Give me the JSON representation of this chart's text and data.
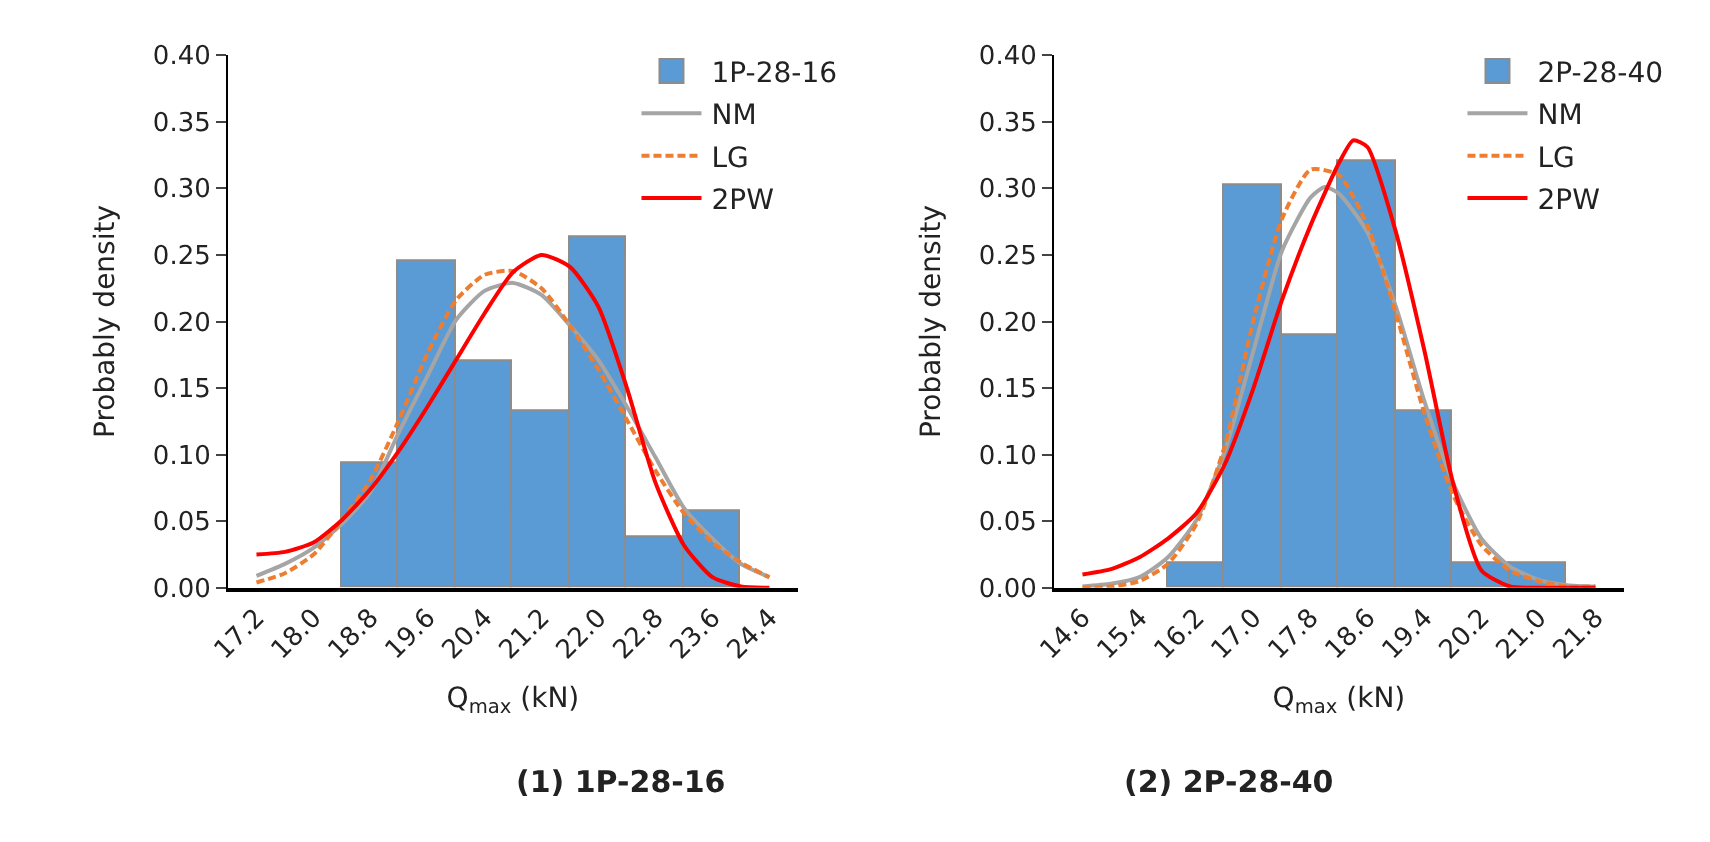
{
  "chart_data": [
    {
      "type": "histogram",
      "title": "(1) 1P-28-16",
      "xlabel": "Q$_{max}$ (kN)",
      "ylabel": "Probably density",
      "xlim": [
        16.8,
        24.8
      ],
      "ylim": [
        0,
        0.4
      ],
      "xticks": [
        {
          "value": 17.2,
          "label": "17.2"
        },
        {
          "value": 18.0,
          "label": "18.0"
        },
        {
          "value": 18.8,
          "label": "18.8"
        },
        {
          "value": 19.6,
          "label": "19.6"
        },
        {
          "value": 20.4,
          "label": "20.4"
        },
        {
          "value": 21.2,
          "label": "21.2"
        },
        {
          "value": 22.0,
          "label": "22.0"
        },
        {
          "value": 22.8,
          "label": "22.8"
        },
        {
          "value": 23.6,
          "label": "23.6"
        },
        {
          "value": 24.4,
          "label": "24.4"
        }
      ],
      "yticks": [
        {
          "value": 0,
          "label": "0.00"
        },
        0.05,
        {
          "value": 0.1,
          "label": "0.10"
        },
        0.15,
        {
          "value": 0.2,
          "label": "0.20"
        },
        0.25,
        {
          "value": 0.3,
          "label": "0.30"
        },
        0.35,
        {
          "value": 0.4,
          "label": "0.40"
        }
      ],
      "grid": false,
      "legend": "top right",
      "series": [
        {
          "name": "1P-28-16",
          "color": "#5b9bd5",
          "bins": [
            18.4,
            19.2,
            20.0,
            20.8,
            21.6,
            22.4,
            23.2,
            24.0
          ],
          "values": [
            0.094,
            0.245,
            0.17,
            0.132,
            0.264,
            0.038,
            0.057
          ]
        },
        {
          "name": "NM",
          "type": "line",
          "color": "#a5a5a5",
          "line_style": "solid",
          "x": [
            17.2,
            17.6,
            18.0,
            18.4,
            18.8,
            19.2,
            19.6,
            20.0,
            20.4,
            20.8,
            21.2,
            21.6,
            22.0,
            22.4,
            22.8,
            23.2,
            23.6,
            24.0,
            24.4
          ],
          "values": [
            0.009,
            0.018,
            0.03,
            0.048,
            0.072,
            0.117,
            0.159,
            0.201,
            0.223,
            0.229,
            0.22,
            0.197,
            0.171,
            0.136,
            0.098,
            0.06,
            0.037,
            0.018,
            0.008
          ]
        },
        {
          "name": "LG",
          "type": "line",
          "color": "#ed7d31",
          "line_style": "dashed",
          "x": [
            17.2,
            17.6,
            18.0,
            18.4,
            18.8,
            19.2,
            19.6,
            20.0,
            20.4,
            20.8,
            21.2,
            21.6,
            22.0,
            22.4,
            22.8,
            23.2,
            23.6,
            24.0,
            24.4
          ],
          "values": [
            0.004,
            0.011,
            0.025,
            0.051,
            0.081,
            0.126,
            0.176,
            0.216,
            0.235,
            0.238,
            0.225,
            0.197,
            0.164,
            0.126,
            0.088,
            0.056,
            0.034,
            0.019,
            0.008
          ]
        },
        {
          "name": "2PW",
          "type": "line",
          "color": "#ff0000",
          "line_style": "solid",
          "x": [
            17.2,
            17.6,
            18.0,
            18.4,
            18.8,
            19.2,
            19.6,
            20.0,
            20.4,
            20.8,
            21.2,
            21.6,
            22.0,
            22.4,
            22.8,
            23.2,
            23.6,
            24.0,
            24.4
          ],
          "values": [
            0.025,
            0.027,
            0.034,
            0.051,
            0.074,
            0.103,
            0.136,
            0.171,
            0.206,
            0.237,
            0.25,
            0.241,
            0.211,
            0.15,
            0.079,
            0.032,
            0.008,
            0.001,
            0
          ]
        }
      ]
    },
    {
      "type": "histogram",
      "title": "(2) 2P-28-40",
      "xlabel": "Q$_{max}$ (kN)",
      "ylabel": "Probably density",
      "xlim": [
        14.2,
        22.2
      ],
      "ylim": [
        0,
        0.4
      ],
      "xticks": [
        {
          "value": 14.6,
          "label": "14.6"
        },
        {
          "value": 15.4,
          "label": "15.4"
        },
        {
          "value": 16.2,
          "label": "16.2"
        },
        {
          "value": 17.0,
          "label": "17.0"
        },
        {
          "value": 17.8,
          "label": "17.8"
        },
        {
          "value": 18.6,
          "label": "18.6"
        },
        {
          "value": 19.4,
          "label": "19.4"
        },
        {
          "value": 20.2,
          "label": "20.2"
        },
        {
          "value": 21.0,
          "label": "21.0"
        },
        {
          "value": 21.8,
          "label": "21.8"
        }
      ],
      "yticks": [
        {
          "value": 0,
          "label": "0.00"
        },
        0.05,
        {
          "value": 0.1,
          "label": "0.10"
        },
        0.15,
        {
          "value": 0.2,
          "label": "0.20"
        },
        0.25,
        {
          "value": 0.3,
          "label": "0.30"
        },
        0.35,
        {
          "value": 0.4,
          "label": "0.40"
        }
      ],
      "grid": false,
      "legend": "top right",
      "series": [
        {
          "name": "2P-28-40",
          "color": "#5b9bd5",
          "bins": [
            15.8,
            16.6,
            17.4,
            18.2,
            19.0,
            19.8,
            20.6,
            21.4
          ],
          "values": [
            0.019,
            0.302,
            0.189,
            0.321,
            0.133,
            0.019,
            0.019
          ]
        },
        {
          "name": "NM",
          "type": "line",
          "color": "#a5a5a5",
          "line_style": "solid",
          "x": [
            14.6,
            15.0,
            15.4,
            15.8,
            16.2,
            16.6,
            17.0,
            17.4,
            17.8,
            18.0,
            18.2,
            18.6,
            19.0,
            19.4,
            19.8,
            20.2,
            20.6,
            21.0,
            21.4,
            21.8
          ],
          "values": [
            0.001,
            0.003,
            0.008,
            0.023,
            0.051,
            0.103,
            0.178,
            0.253,
            0.293,
            0.301,
            0.296,
            0.267,
            0.211,
            0.14,
            0.079,
            0.037,
            0.016,
            0.006,
            0.002,
            0.001
          ]
        },
        {
          "name": "LG",
          "type": "line",
          "color": "#ed7d31",
          "line_style": "dashed",
          "x": [
            14.6,
            15.0,
            15.4,
            15.8,
            16.2,
            16.6,
            17.0,
            17.4,
            17.8,
            18.2,
            18.6,
            19.0,
            19.4,
            19.8,
            20.2,
            20.6,
            21.0,
            21.4,
            21.8
          ],
          "values": [
            0,
            0.001,
            0.005,
            0.018,
            0.048,
            0.107,
            0.201,
            0.277,
            0.314,
            0.31,
            0.272,
            0.206,
            0.131,
            0.07,
            0.032,
            0.013,
            0.005,
            0.001,
            0.001
          ]
        },
        {
          "name": "2PW",
          "type": "line",
          "color": "#ff0000",
          "line_style": "solid",
          "x": [
            14.6,
            15.0,
            15.4,
            15.8,
            16.2,
            16.6,
            17.0,
            17.4,
            17.8,
            18.2,
            18.4,
            18.6,
            19.0,
            19.4,
            19.8,
            20.2,
            20.6,
            21.0,
            21.4,
            21.8
          ],
          "values": [
            0.01,
            0.014,
            0.023,
            0.037,
            0.056,
            0.093,
            0.15,
            0.216,
            0.272,
            0.319,
            0.336,
            0.331,
            0.267,
            0.178,
            0.079,
            0.013,
            0.001,
            0,
            0,
            0
          ]
        }
      ]
    }
  ]
}
